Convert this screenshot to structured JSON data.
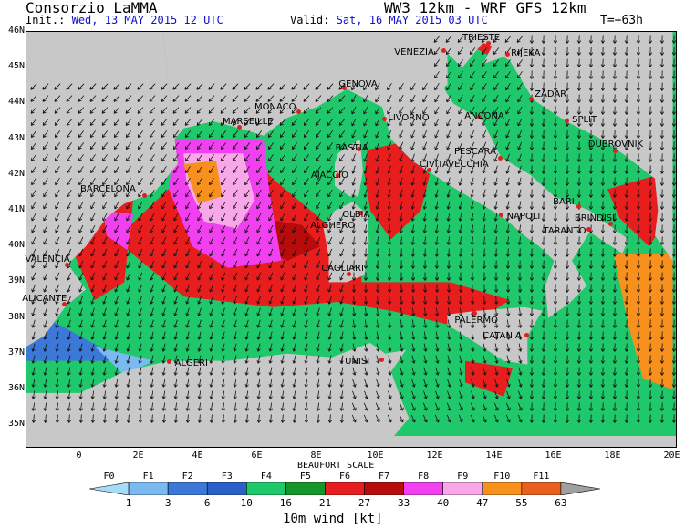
{
  "header": {
    "org": "Consorzio LaMMA",
    "model": "WW3 12km - WRF GFS 12km",
    "init_label": "Init.:",
    "init_value": "Wed, 13 MAY 2015 12 UTC",
    "valid_label": "Valid:",
    "valid_value": "Sat, 16 MAY 2015 03 UTC",
    "lead_time": "T=+63h"
  },
  "axes": {
    "lat_labels": [
      "46N",
      "45N",
      "44N",
      "43N",
      "42N",
      "41N",
      "40N",
      "39N",
      "38N",
      "37N",
      "36N",
      "35N"
    ],
    "lon_labels": [
      "0",
      "2E",
      "4E",
      "6E",
      "8E",
      "10E",
      "12E",
      "14E",
      "16E",
      "18E",
      "20E"
    ]
  },
  "cities": [
    {
      "name": "TRIESTE",
      "lon": 13.8,
      "lat": 45.65
    },
    {
      "name": "VENEZIA",
      "lon": 12.3,
      "lat": 45.45
    },
    {
      "name": "RIJEKA",
      "lon": 14.45,
      "lat": 45.35
    },
    {
      "name": "GENOVA",
      "lon": 8.95,
      "lat": 44.4
    },
    {
      "name": "MONACO",
      "lon": 7.4,
      "lat": 43.75
    },
    {
      "name": "MARSEILLE",
      "lon": 5.4,
      "lat": 43.3
    },
    {
      "name": "LIVORNO",
      "lon": 10.3,
      "lat": 43.55
    },
    {
      "name": "ANCONA",
      "lon": 13.5,
      "lat": 43.6
    },
    {
      "name": "ZADAR",
      "lon": 15.25,
      "lat": 44.1
    },
    {
      "name": "SPLIT",
      "lon": 16.45,
      "lat": 43.5
    },
    {
      "name": "DUBROVNIK",
      "lon": 18.1,
      "lat": 42.65
    },
    {
      "name": "BASTIA",
      "lon": 9.45,
      "lat": 42.7
    },
    {
      "name": "AJACCIO",
      "lon": 8.75,
      "lat": 41.95
    },
    {
      "name": "PESCARA",
      "lon": 14.2,
      "lat": 42.45
    },
    {
      "name": "CIVITAVECCHIA",
      "lon": 11.8,
      "lat": 42.1
    },
    {
      "name": "BARCELONA",
      "lon": 2.2,
      "lat": 41.4
    },
    {
      "name": "OLBIA",
      "lon": 9.5,
      "lat": 40.9
    },
    {
      "name": "ALGHERO",
      "lon": 8.3,
      "lat": 40.55
    },
    {
      "name": "NAPOLI",
      "lon": 14.25,
      "lat": 40.85
    },
    {
      "name": "BARI",
      "lon": 16.85,
      "lat": 41.1
    },
    {
      "name": "BRINDISI",
      "lon": 17.95,
      "lat": 40.6
    },
    {
      "name": "TARANTO",
      "lon": 17.2,
      "lat": 40.45
    },
    {
      "name": "VALENCIA",
      "lon": -0.4,
      "lat": 39.45
    },
    {
      "name": "CAGLIARI",
      "lon": 9.1,
      "lat": 39.2
    },
    {
      "name": "ALICANTE",
      "lon": -0.5,
      "lat": 38.35
    },
    {
      "name": "PALERMO",
      "lon": 13.35,
      "lat": 38.1
    },
    {
      "name": "CATANIA",
      "lon": 15.1,
      "lat": 37.5
    },
    {
      "name": "ALGERI",
      "lon": 3.05,
      "lat": 36.75
    },
    {
      "name": "TUNISI",
      "lon": 10.2,
      "lat": 36.8
    }
  ],
  "legend": {
    "title": "BEAUFORT SCALE",
    "unit_label": "10m wind [kt]",
    "beaufort": [
      "F0",
      "F1",
      "F2",
      "F3",
      "F4",
      "F5",
      "F6",
      "F7",
      "F8",
      "F9",
      "F10",
      "F11"
    ],
    "kt_values": [
      "1",
      "3",
      "6",
      "10",
      "16",
      "21",
      "27",
      "33",
      "40",
      "47",
      "55",
      "63"
    ],
    "colors": [
      "#a6dcf7",
      "#7bbaf0",
      "#3c78d8",
      "#2a5ec8",
      "#1fc86a",
      "#149628",
      "#e81e1e",
      "#b80c0c",
      "#f040f0",
      "#f8a8e8",
      "#f8901e",
      "#e8601e",
      "#a0a0a0"
    ]
  },
  "map_colors": {
    "land": "#c8c8c8",
    "calm": "#7bbaf0",
    "light": "#3c78d8",
    "moderate": "#1fc86a",
    "fresh": "#149628",
    "strong": "#e81e1e",
    "near_gale": "#b80c0c",
    "gale": "#f040f0",
    "strong_gale": "#f8a8e8",
    "storm": "#f8901e"
  }
}
